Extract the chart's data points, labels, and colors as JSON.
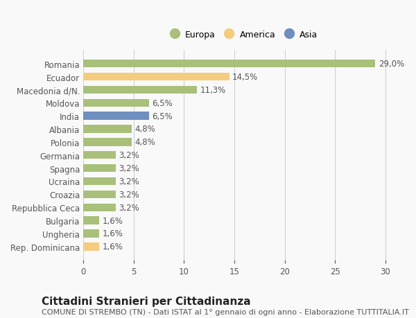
{
  "categories": [
    "Romania",
    "Ecuador",
    "Macedonia d/N.",
    "Moldova",
    "India",
    "Albania",
    "Polonia",
    "Germania",
    "Spagna",
    "Ucraina",
    "Croazia",
    "Repubblica Ceca",
    "Bulgaria",
    "Ungheria",
    "Rep. Dominicana"
  ],
  "values": [
    29.0,
    14.5,
    11.3,
    6.5,
    6.5,
    4.8,
    4.8,
    3.2,
    3.2,
    3.2,
    3.2,
    3.2,
    1.6,
    1.6,
    1.6
  ],
  "labels": [
    "29,0%",
    "14,5%",
    "11,3%",
    "6,5%",
    "6,5%",
    "4,8%",
    "4,8%",
    "3,2%",
    "3,2%",
    "3,2%",
    "3,2%",
    "3,2%",
    "1,6%",
    "1,6%",
    "1,6%"
  ],
  "colors": [
    "#a8c07a",
    "#f5cb7e",
    "#a8c07a",
    "#a8c07a",
    "#6e8fbf",
    "#a8c07a",
    "#a8c07a",
    "#a8c07a",
    "#a8c07a",
    "#a8c07a",
    "#a8c07a",
    "#a8c07a",
    "#a8c07a",
    "#a8c07a",
    "#f5cb7e"
  ],
  "legend": [
    {
      "label": "Europa",
      "color": "#a8c07a"
    },
    {
      "label": "America",
      "color": "#f5cb7e"
    },
    {
      "label": "Asia",
      "color": "#6e8fbf"
    }
  ],
  "xlim": [
    0,
    32
  ],
  "xticks": [
    0,
    5,
    10,
    15,
    20,
    25,
    30
  ],
  "title": "Cittadini Stranieri per Cittadinanza",
  "subtitle": "COMUNE DI STREMBO (TN) - Dati ISTAT al 1° gennaio di ogni anno - Elaborazione TUTTITALIA.IT",
  "background_color": "#f9f9f9",
  "bar_height": 0.6,
  "label_fontsize": 8.5,
  "tick_fontsize": 8.5,
  "title_fontsize": 11,
  "subtitle_fontsize": 8
}
